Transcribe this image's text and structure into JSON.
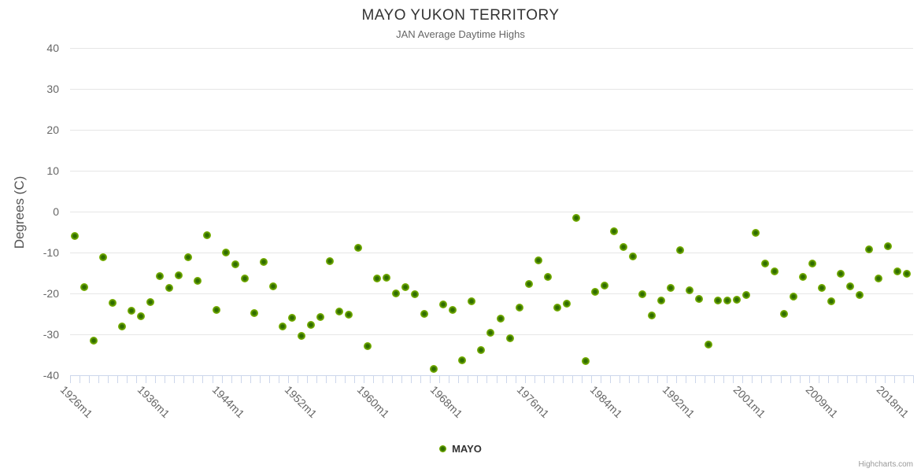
{
  "chart_data": {
    "type": "scatter",
    "title": "MAYO YUKON TERRITORY",
    "subtitle": "JAN Average Daytime Highs",
    "ylabel": "Degrees (C)",
    "xlabel": "",
    "ylim": [
      -40,
      40
    ],
    "y_ticks": [
      40,
      30,
      20,
      10,
      0,
      -10,
      -20,
      -30,
      -40
    ],
    "x_tick_labels": [
      "1926m1",
      "1936m1",
      "1944m1",
      "1952m1",
      "1960m1",
      "1968m1",
      "1976m1",
      "1984m1",
      "1992m1",
      "2001m1",
      "2009m1",
      "2018m1"
    ],
    "grid": true,
    "legend_position": "bottom-center",
    "marker_color": "#7db500",
    "series": [
      {
        "name": "MAYO",
        "start_label": "1926m1",
        "values": [
          -6.0,
          -18.4,
          -31.5,
          -11.2,
          -22.3,
          -28.1,
          -24.2,
          -25.5,
          -22.2,
          -15.7,
          -18.6,
          -15.5,
          -11.1,
          -17.0,
          -5.7,
          -24.1,
          -9.9,
          -12.9,
          -16.4,
          -24.8,
          -12.3,
          -18.3,
          -28.1,
          -26.0,
          -30.3,
          -27.7,
          -25.7,
          -12.1,
          -24.4,
          -25.2,
          -8.9,
          -32.9,
          -16.4,
          -16.2,
          -19.9,
          -18.5,
          -20.1,
          -24.9,
          -38.4,
          -22.7,
          -24.1,
          -36.3,
          -22.0,
          -33.9,
          -29.7,
          -26.1,
          -30.9,
          -23.4,
          -17.6,
          -12.0,
          -15.9,
          -23.5,
          -22.5,
          -1.6,
          -36.5,
          -19.6,
          -18.1,
          -4.8,
          -8.7,
          -11.0,
          -20.1,
          -25.4,
          -21.7,
          -18.7,
          -9.4,
          -19.3,
          -21.4,
          -32.5,
          -21.8,
          -21.7,
          -21.5,
          -20.3,
          -5.1,
          -12.6,
          -14.7,
          -24.9,
          -20.7,
          -15.9,
          -12.7,
          -18.7,
          -21.9,
          -15.2,
          -18.3,
          -20.3,
          -9.3,
          -16.4,
          -8.5,
          -14.6,
          -15.1
        ]
      }
    ],
    "credits": "Highcharts.com"
  }
}
